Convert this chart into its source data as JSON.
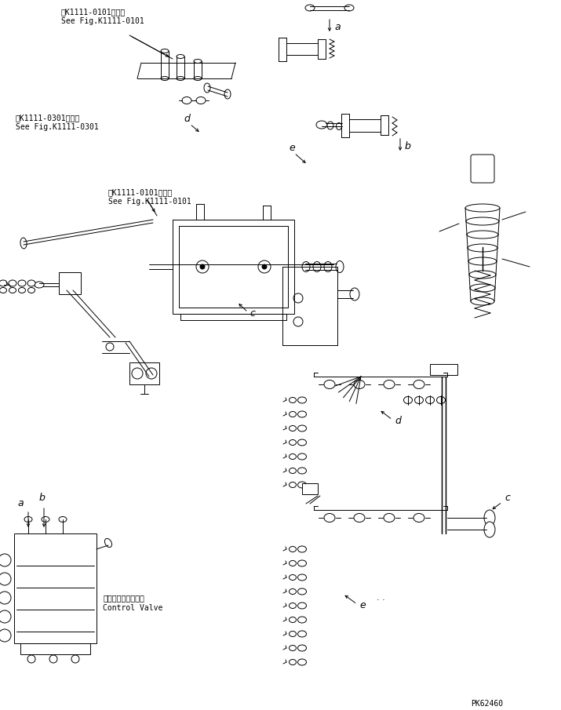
{
  "bg_color": "#ffffff",
  "line_color": "#000000",
  "fig_width": 7.15,
  "fig_height": 9.05,
  "dpi": 100,
  "part_code": "PK62460",
  "lw": 0.7,
  "ref1": [
    "第K1111-0101図参照",
    "See Fig.K1111-0101"
  ],
  "ref2": [
    "第K1111-0301図参照",
    "See Fig.K1111-0301"
  ],
  "ref3": [
    "第K1111-0101図参照",
    "See Fig.K1111-0101"
  ],
  "cv_jp": "コントロールバルブ",
  "cv_en": "Control Valve"
}
